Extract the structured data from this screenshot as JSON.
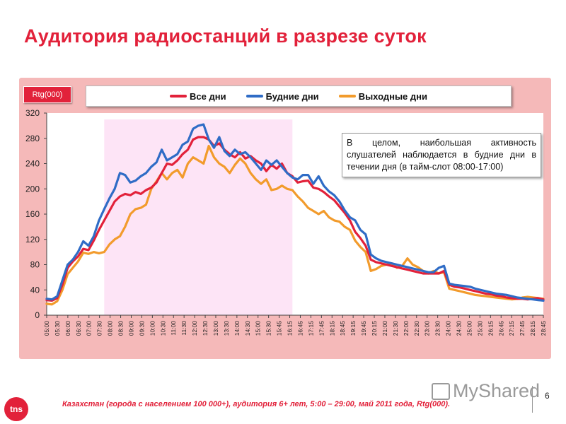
{
  "page": {
    "title": "Аудитория радиостанций в разрезе суток",
    "footer": "Казахстан (города с населением 100 000+), аудитория 6+ лет, 5:00 – 29:00, май 2011 года, Rtg(000).",
    "page_number": "6",
    "logo_text": "tns",
    "watermark": "MyShared",
    "unit_label": "Rtg(000)",
    "note": "В целом, наибольшая активность слушателей наблюдается в будние дни в течении дня (в тайм-слот 08:00-17:00)"
  },
  "colors": {
    "accent": "#e2213a",
    "highlight": "#fde4f6",
    "panel": "#f5b9b9"
  },
  "chart_data": {
    "type": "line",
    "ylim": [
      0,
      320
    ],
    "yticks": [
      0,
      40,
      80,
      120,
      160,
      200,
      240,
      280,
      320
    ],
    "legend_position": "top",
    "highlight_range": [
      "07:45",
      "16:45"
    ],
    "categories": [
      "05:00",
      "05:15",
      "05:30",
      "05:45",
      "06:00",
      "06:15",
      "06:30",
      "06:45",
      "07:00",
      "07:15",
      "07:30",
      "07:45",
      "08:00",
      "08:15",
      "08:30",
      "08:45",
      "09:00",
      "09:15",
      "09:30",
      "09:45",
      "10:00",
      "10:15",
      "10:30",
      "10:45",
      "11:00",
      "11:15",
      "11:30",
      "11:45",
      "12:00",
      "12:15",
      "12:30",
      "12:45",
      "13:00",
      "13:15",
      "13:30",
      "13:45",
      "14:00",
      "14:15",
      "14:30",
      "14:45",
      "15:00",
      "15:15",
      "15:30",
      "15:45",
      "16:00",
      "16:15",
      "16:30",
      "16:45",
      "17:00",
      "17:15",
      "17:30",
      "17:45",
      "18:00",
      "18:15",
      "18:30",
      "18:45",
      "19:00",
      "19:15",
      "19:30",
      "19:45",
      "20:00",
      "20:15",
      "20:30",
      "20:45",
      "21:00",
      "21:15",
      "21:30",
      "21:45",
      "22:00",
      "22:15",
      "22:30",
      "22:45",
      "23:00",
      "23:15",
      "23:30",
      "23:45",
      "24:00",
      "24:15",
      "24:30",
      "24:45",
      "25:00",
      "25:15",
      "25:30",
      "25:45",
      "26:00",
      "26:15",
      "26:30",
      "26:45",
      "27:00",
      "27:15",
      "27:30",
      "27:45",
      "28:00",
      "28:15",
      "28:30",
      "28:45"
    ],
    "tick_labels": [
      "05:00",
      "05:30",
      "06:00",
      "06:30",
      "07:00",
      "07:30",
      "08:00",
      "08:30",
      "09:00",
      "09:30",
      "10:00",
      "10:30",
      "11:00",
      "11:30",
      "12:00",
      "12:30",
      "13:00",
      "13:30",
      "14:00",
      "14:30",
      "15:00",
      "15:30",
      "15:45",
      "16:15",
      "16:45",
      "17:15",
      "17:45",
      "18:15",
      "18:45",
      "19:15",
      "19:45",
      "20:15",
      "21:00",
      "21:30",
      "22:00",
      "22:30",
      "23:00",
      "23:30",
      "24:00",
      "24:30",
      "25:00",
      "25:30",
      "26:15",
      "26:45",
      "27:15",
      "27:45",
      "28:15",
      "28:45"
    ],
    "series": [
      {
        "name": "Все дни",
        "color": "#e2213a",
        "values": [
          24,
          23,
          27,
          48,
          75,
          85,
          93,
          105,
          103,
          118,
          135,
          150,
          165,
          180,
          188,
          192,
          190,
          195,
          192,
          198,
          202,
          210,
          225,
          240,
          238,
          245,
          255,
          262,
          278,
          282,
          282,
          278,
          268,
          272,
          262,
          255,
          250,
          258,
          248,
          252,
          245,
          240,
          228,
          238,
          232,
          240,
          225,
          220,
          210,
          212,
          213,
          202,
          200,
          195,
          188,
          182,
          172,
          162,
          150,
          132,
          122,
          110,
          88,
          84,
          82,
          80,
          78,
          76,
          74,
          72,
          70,
          68,
          66,
          66,
          66,
          66,
          70,
          48,
          45,
          44,
          42,
          40,
          38,
          36,
          34,
          33,
          31,
          30,
          28,
          27,
          26,
          26,
          25,
          26,
          27,
          25
        ]
      },
      {
        "name": "Будние дни",
        "color": "#2f6cc6",
        "values": [
          26,
          25,
          30,
          55,
          80,
          88,
          100,
          117,
          110,
          125,
          150,
          168,
          185,
          200,
          225,
          222,
          210,
          213,
          220,
          225,
          235,
          242,
          262,
          245,
          250,
          255,
          270,
          275,
          295,
          300,
          302,
          278,
          265,
          282,
          260,
          252,
          262,
          255,
          258,
          250,
          240,
          230,
          245,
          238,
          245,
          235,
          225,
          218,
          215,
          222,
          222,
          208,
          220,
          205,
          196,
          190,
          180,
          166,
          155,
          150,
          135,
          128,
          96,
          90,
          86,
          84,
          82,
          80,
          78,
          76,
          74,
          72,
          70,
          68,
          68,
          75,
          78,
          50,
          48,
          47,
          46,
          45,
          42,
          40,
          38,
          36,
          34,
          33,
          32,
          30,
          28,
          27,
          26,
          25,
          24,
          23
        ]
      },
      {
        "name": "Выходные дни",
        "color": "#f29b2c",
        "values": [
          18,
          17,
          22,
          40,
          65,
          75,
          85,
          99,
          97,
          100,
          98,
          100,
          112,
          120,
          125,
          140,
          160,
          168,
          170,
          175,
          200,
          212,
          225,
          215,
          225,
          230,
          218,
          240,
          250,
          245,
          240,
          268,
          250,
          240,
          235,
          225,
          238,
          248,
          240,
          225,
          215,
          208,
          215,
          198,
          200,
          205,
          200,
          198,
          188,
          180,
          170,
          165,
          160,
          165,
          155,
          150,
          148,
          140,
          135,
          118,
          108,
          100,
          70,
          73,
          78,
          80,
          82,
          75,
          78,
          90,
          80,
          76,
          70,
          66,
          70,
          66,
          68,
          42,
          40,
          38,
          36,
          34,
          32,
          31,
          30,
          29,
          28,
          27,
          26,
          25,
          26,
          28,
          29,
          28,
          27,
          26
        ]
      }
    ]
  }
}
